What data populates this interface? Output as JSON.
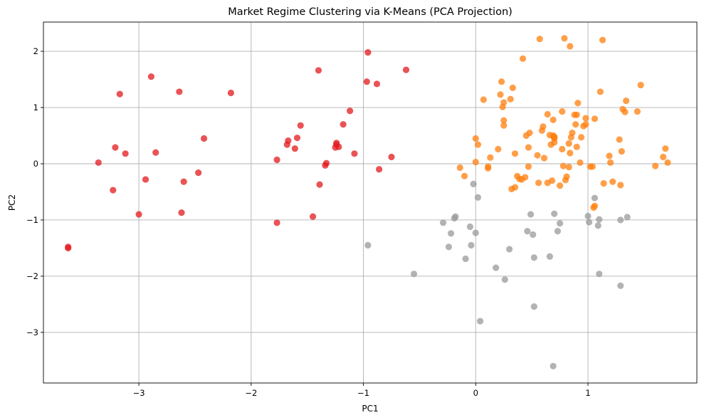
{
  "chart_data": {
    "type": "scatter",
    "title": "Market Regime Clustering via K-Means (PCA Projection)",
    "xlabel": "PC1",
    "ylabel": "PC2",
    "xlim": [
      -3.85,
      1.97
    ],
    "ylim": [
      -3.9,
      2.52
    ],
    "xticks": [
      -3,
      -2,
      -1,
      0,
      1
    ],
    "yticks": [
      -3,
      -2,
      -1,
      0,
      1,
      2
    ],
    "xtick_labels": [
      "−3",
      "−2",
      "−1",
      "0",
      "1"
    ],
    "ytick_labels": [
      "−3",
      "−2",
      "−1",
      "0",
      "1",
      "2"
    ],
    "grid": true,
    "legend": "none",
    "series": [
      {
        "color": "#e31a1c",
        "points": [
          [
            -3.63,
            -1.48
          ],
          [
            -3.63,
            -1.5
          ],
          [
            -3.36,
            0.02
          ],
          [
            -3.23,
            -0.47
          ],
          [
            -3.21,
            0.29
          ],
          [
            -3.17,
            1.24
          ],
          [
            -3.12,
            0.18
          ],
          [
            -3.0,
            -0.9
          ],
          [
            -2.94,
            -0.28
          ],
          [
            -2.89,
            1.55
          ],
          [
            -2.85,
            0.2
          ],
          [
            -2.64,
            1.28
          ],
          [
            -2.62,
            -0.87
          ],
          [
            -2.6,
            -0.32
          ],
          [
            -2.47,
            -0.16
          ],
          [
            -2.42,
            0.45
          ],
          [
            -2.18,
            1.26
          ],
          [
            -1.77,
            0.07
          ],
          [
            -1.77,
            -1.05
          ],
          [
            -1.68,
            0.34
          ],
          [
            -1.67,
            0.41
          ],
          [
            -1.61,
            0.27
          ],
          [
            -1.59,
            0.46
          ],
          [
            -1.56,
            0.68
          ],
          [
            -1.45,
            -0.94
          ],
          [
            -1.4,
            1.66
          ],
          [
            -1.39,
            -0.37
          ],
          [
            -1.34,
            -0.03
          ],
          [
            -1.33,
            0.01
          ],
          [
            -1.25,
            0.29
          ],
          [
            -1.24,
            0.37
          ],
          [
            -1.24,
            0.34
          ],
          [
            -1.22,
            0.3
          ],
          [
            -1.18,
            0.7
          ],
          [
            -1.12,
            0.94
          ],
          [
            -1.08,
            0.18
          ],
          [
            -0.97,
            1.46
          ],
          [
            -0.96,
            1.98
          ],
          [
            -0.88,
            1.42
          ],
          [
            -0.86,
            -0.1
          ],
          [
            -0.75,
            0.12
          ],
          [
            -0.62,
            1.67
          ]
        ]
      },
      {
        "color": "#ff7f0e",
        "points": [
          [
            -0.14,
            -0.07
          ],
          [
            -0.1,
            -0.22
          ],
          [
            0.0,
            0.45
          ],
          [
            0.0,
            0.03
          ],
          [
            0.02,
            0.34
          ],
          [
            0.07,
            1.14
          ],
          [
            0.11,
            -0.05
          ],
          [
            0.11,
            -0.08
          ],
          [
            0.13,
            0.11
          ],
          [
            0.2,
            0.26
          ],
          [
            0.22,
            1.23
          ],
          [
            0.23,
            1.46
          ],
          [
            0.24,
            1.01
          ],
          [
            0.25,
            1.09
          ],
          [
            0.25,
            0.68
          ],
          [
            0.25,
            0.77
          ],
          [
            0.31,
            1.15
          ],
          [
            0.32,
            -0.45
          ],
          [
            0.33,
            1.35
          ],
          [
            0.35,
            -0.42
          ],
          [
            0.35,
            0.18
          ],
          [
            0.37,
            -0.22
          ],
          [
            0.39,
            -0.27
          ],
          [
            0.41,
            -0.28
          ],
          [
            0.42,
            1.87
          ],
          [
            0.44,
            -0.24
          ],
          [
            0.45,
            0.5
          ],
          [
            0.47,
            0.29
          ],
          [
            0.47,
            -0.05
          ],
          [
            0.48,
            0.55
          ],
          [
            0.55,
            0.15
          ],
          [
            0.56,
            -0.34
          ],
          [
            0.57,
            2.22
          ],
          [
            0.59,
            0.59
          ],
          [
            0.6,
            0.66
          ],
          [
            0.61,
            0.1
          ],
          [
            0.64,
            -0.34
          ],
          [
            0.64,
            0.88
          ],
          [
            0.66,
            0.51
          ],
          [
            0.67,
            0.34
          ],
          [
            0.68,
            -0.3
          ],
          [
            0.69,
            0.78
          ],
          [
            0.69,
            0.5
          ],
          [
            0.7,
            0.47
          ],
          [
            0.7,
            0.45
          ],
          [
            0.7,
            0.38
          ],
          [
            0.7,
            0.48
          ],
          [
            0.75,
            -0.39
          ],
          [
            0.77,
            0.93
          ],
          [
            0.77,
            0.26
          ],
          [
            0.78,
            -0.04
          ],
          [
            0.79,
            2.23
          ],
          [
            0.8,
            -0.29
          ],
          [
            0.81,
            -0.23
          ],
          [
            0.83,
            -0.06
          ],
          [
            0.83,
            0.36
          ],
          [
            0.84,
            0.19
          ],
          [
            0.84,
            2.09
          ],
          [
            0.85,
            0.47
          ],
          [
            0.86,
            0.55
          ],
          [
            0.88,
            0.87
          ],
          [
            0.89,
            0.7
          ],
          [
            0.9,
            0.87
          ],
          [
            0.9,
            0.3
          ],
          [
            0.91,
            1.08
          ],
          [
            0.93,
            0.02
          ],
          [
            0.94,
            0.47
          ],
          [
            0.96,
            0.67
          ],
          [
            0.98,
            0.7
          ],
          [
            0.98,
            0.81
          ],
          [
            1.02,
            -0.05
          ],
          [
            1.04,
            -0.05
          ],
          [
            1.06,
            0.8
          ],
          [
            1.11,
            1.28
          ],
          [
            1.13,
            2.2
          ],
          [
            1.14,
            -0.35
          ],
          [
            1.19,
            0.14
          ],
          [
            1.2,
            0.02
          ],
          [
            1.22,
            -0.32
          ],
          [
            1.28,
            0.43
          ],
          [
            1.29,
            -0.38
          ],
          [
            1.3,
            0.22
          ],
          [
            1.31,
            0.97
          ],
          [
            1.33,
            0.92
          ],
          [
            1.34,
            1.12
          ],
          [
            1.44,
            0.93
          ],
          [
            1.47,
            1.4
          ],
          [
            1.6,
            -0.04
          ],
          [
            1.67,
            0.12
          ],
          [
            1.69,
            0.27
          ],
          [
            1.71,
            0.02
          ],
          [
            1.05,
            -0.78
          ],
          [
            1.06,
            -0.75
          ]
        ]
      },
      {
        "color": "#999999",
        "points": [
          [
            -0.96,
            -1.45
          ],
          [
            -0.55,
            -1.96
          ],
          [
            -0.29,
            -1.05
          ],
          [
            -0.24,
            -1.48
          ],
          [
            -0.22,
            -1.24
          ],
          [
            -0.19,
            -0.97
          ],
          [
            -0.18,
            -0.94
          ],
          [
            -0.09,
            -1.69
          ],
          [
            -0.05,
            -1.12
          ],
          [
            -0.04,
            -1.45
          ],
          [
            -0.02,
            -0.36
          ],
          [
            0.0,
            -1.23
          ],
          [
            0.02,
            -0.6
          ],
          [
            0.04,
            -2.8
          ],
          [
            0.18,
            -1.85
          ],
          [
            0.26,
            -2.06
          ],
          [
            0.3,
            -1.52
          ],
          [
            0.46,
            -1.2
          ],
          [
            0.49,
            -0.9
          ],
          [
            0.51,
            -1.26
          ],
          [
            0.52,
            -1.67
          ],
          [
            0.52,
            -2.54
          ],
          [
            0.66,
            -1.65
          ],
          [
            0.69,
            -3.6
          ],
          [
            0.7,
            -0.89
          ],
          [
            0.73,
            -1.2
          ],
          [
            0.75,
            -1.06
          ],
          [
            1.0,
            -0.93
          ],
          [
            1.01,
            -1.04
          ],
          [
            1.06,
            -0.61
          ],
          [
            1.09,
            -1.1
          ],
          [
            1.1,
            -0.99
          ],
          [
            1.1,
            -1.96
          ],
          [
            1.29,
            -1.0
          ],
          [
            1.29,
            -2.17
          ],
          [
            1.35,
            -0.95
          ]
        ]
      }
    ]
  }
}
